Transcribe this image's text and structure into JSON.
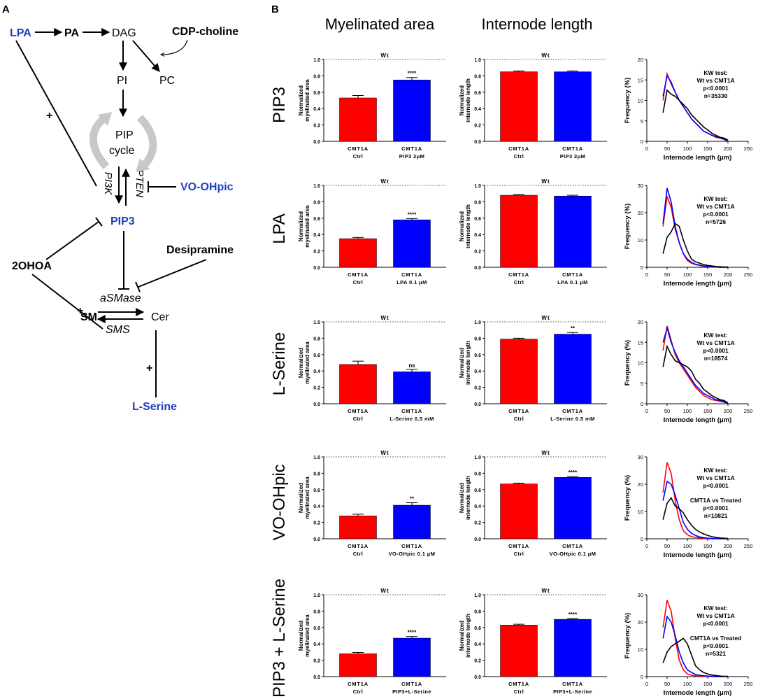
{
  "panel_a": {
    "label": "A",
    "nodes": {
      "lpa": "LPA",
      "pa": "PA",
      "dag": "DAG",
      "cdp": "CDP-choline",
      "pi": "PI",
      "pc": "PC",
      "pip_cycle_1": "PIP",
      "pip_cycle_2": "cycle",
      "pi3k": "PI3K",
      "pten": "PTEN",
      "vo": "VO-OHpic",
      "pip3": "PIP3",
      "desipramine": "Desipramine",
      "ohoa": "2OHOA",
      "asmase": "aSMase",
      "sm": "SM",
      "sms": "SMS",
      "cer": "Cer",
      "lserine": "L-Serine",
      "plus": "+"
    },
    "colors": {
      "blue": "#1f3fbf",
      "arrow_gray": "#c8c8c8"
    }
  },
  "panel_b": {
    "label": "B",
    "col_headers": [
      "Myelinated area",
      "Internode length"
    ],
    "colors": {
      "ctrl": "#ff0000",
      "treated": "#0000ff",
      "wt": "#000000"
    }
  },
  "chart_data": [
    {
      "id": "pip3_area",
      "type": "bar",
      "row_label": "PIP3",
      "ylabel": [
        "Normalized",
        "myelinated area"
      ],
      "categories": [
        [
          "CMT1A",
          "Ctrl"
        ],
        [
          "CMT1A",
          "PIP3 2μM"
        ]
      ],
      "values": [
        0.53,
        0.75
      ],
      "errors": [
        0.03,
        0.03
      ],
      "significance": [
        "",
        "****"
      ],
      "wt_label": "Wt",
      "wt_value": 1.0,
      "ylim": [
        0,
        1.0
      ],
      "yticks": [
        "0.0",
        "0.2",
        "0.4",
        "0.6",
        "0.8",
        "1.0"
      ]
    },
    {
      "id": "pip3_len",
      "type": "bar",
      "ylabel": [
        "Normalized",
        "internode length"
      ],
      "categories": [
        [
          "CMT1A",
          "Ctrl"
        ],
        [
          "CMT1A",
          "PIP3 2μM"
        ]
      ],
      "values": [
        0.85,
        0.85
      ],
      "errors": [
        0.01,
        0.01
      ],
      "significance": [
        "",
        ""
      ],
      "wt_label": "Wt",
      "wt_value": 1.0,
      "ylim": [
        0,
        1.0
      ],
      "yticks": [
        "0.0",
        "0.2",
        "0.4",
        "0.6",
        "0.8",
        "1.0"
      ]
    },
    {
      "id": "pip3_freq",
      "type": "line",
      "ylabel": "Frequency (%)",
      "xlabel": "Internode length (μm)",
      "xlim": [
        0,
        250
      ],
      "ylim": [
        0,
        20
      ],
      "xticks": [
        "0",
        "50",
        "100",
        "150",
        "200",
        "250"
      ],
      "yticks": [
        "0",
        "5",
        "10",
        "15",
        "20"
      ],
      "x": [
        40,
        50,
        60,
        70,
        80,
        90,
        100,
        110,
        120,
        130,
        140,
        150,
        160,
        170,
        180,
        190,
        200
      ],
      "series": [
        {
          "name": "CMT1A",
          "values": [
            10,
            16.5,
            14,
            12,
            10,
            8.5,
            7,
            5.5,
            4.5,
            3.5,
            2.5,
            2,
            1.5,
            1,
            0.8,
            0.5,
            0
          ]
        },
        {
          "name": "Treated",
          "values": [
            11,
            16,
            14.5,
            12,
            10,
            8.5,
            7,
            5.5,
            4.5,
            3.5,
            2.5,
            2,
            1.5,
            1.2,
            0.9,
            0.6,
            0
          ]
        },
        {
          "name": "Wt",
          "values": [
            7,
            12.5,
            11.5,
            11,
            10,
            9,
            8,
            6.5,
            5.5,
            4.5,
            3.5,
            2.8,
            2,
            1.5,
            1,
            0.8,
            0.3
          ]
        }
      ],
      "annotation": [
        "KW test:",
        "Wt vs CMT1A",
        "p<0.0001",
        "n=35330"
      ]
    },
    {
      "id": "lpa_area",
      "type": "bar",
      "row_label": "LPA",
      "ylabel": [
        "Normalized",
        "myelinated area"
      ],
      "categories": [
        [
          "CMT1A",
          "Ctrl"
        ],
        [
          "CMT1A",
          "LPA 0.1 μM"
        ]
      ],
      "values": [
        0.35,
        0.58
      ],
      "errors": [
        0.015,
        0.015
      ],
      "significance": [
        "",
        "****"
      ],
      "wt_label": "Wt",
      "wt_value": 1.0,
      "ylim": [
        0,
        1.0
      ],
      "yticks": [
        "0.0",
        "0.2",
        "0.4",
        "0.6",
        "0.8",
        "1.0"
      ]
    },
    {
      "id": "lpa_len",
      "type": "bar",
      "ylabel": [
        "Normalized",
        "internode length"
      ],
      "categories": [
        [
          "CMT1A",
          "Ctrl"
        ],
        [
          "CMT1A",
          "LPA 0.1 μM"
        ]
      ],
      "values": [
        0.88,
        0.87
      ],
      "errors": [
        0.01,
        0.01
      ],
      "significance": [
        "",
        ""
      ],
      "wt_label": "Wt",
      "wt_value": 1.0,
      "ylim": [
        0,
        1.0
      ],
      "yticks": [
        "0.0",
        "0.2",
        "0.4",
        "0.6",
        "0.8",
        "1.0"
      ]
    },
    {
      "id": "lpa_freq",
      "type": "line",
      "ylabel": "Frequency (%)",
      "xlabel": "Internode length (μm)",
      "xlim": [
        0,
        250
      ],
      "ylim": [
        0,
        30
      ],
      "xticks": [
        "0",
        "50",
        "100",
        "150",
        "200",
        "250"
      ],
      "yticks": [
        "0",
        "10",
        "20",
        "30"
      ],
      "x": [
        40,
        50,
        60,
        70,
        80,
        90,
        100,
        110,
        120,
        130,
        140,
        150,
        160,
        170,
        180,
        190,
        200
      ],
      "series": [
        {
          "name": "CMT1A",
          "values": [
            15,
            26,
            22,
            14,
            9,
            5,
            2.5,
            1.5,
            1,
            0.7,
            0.4,
            0.2,
            0.1,
            0.1,
            0,
            0,
            0
          ]
        },
        {
          "name": "Treated",
          "values": [
            16,
            29,
            24,
            15,
            9,
            5,
            3,
            1.8,
            1.1,
            0.8,
            0.5,
            0.3,
            0.2,
            0.1,
            0,
            0,
            0
          ]
        },
        {
          "name": "Wt",
          "values": [
            5,
            11,
            13,
            16,
            15,
            10,
            6,
            3,
            2,
            1.5,
            1,
            0.7,
            0.5,
            0.3,
            0.2,
            0.1,
            0.1
          ]
        }
      ],
      "annotation": [
        "KW test:",
        "Wt vs CMT1A",
        "p<0.0001",
        "n=5726"
      ]
    },
    {
      "id": "ls_area",
      "type": "bar",
      "row_label": "L-Serine",
      "ylabel": [
        "Normalized",
        "myelinated area"
      ],
      "categories": [
        [
          "CMT1A",
          "Ctrl"
        ],
        [
          "CMT1A",
          "L-Serine 0.5 mM"
        ]
      ],
      "values": [
        0.48,
        0.39
      ],
      "errors": [
        0.04,
        0.03
      ],
      "significance": [
        "",
        "ns"
      ],
      "wt_label": "Wt",
      "wt_value": 1.0,
      "ylim": [
        0,
        1.0
      ],
      "yticks": [
        "0.0",
        "0.2",
        "0.4",
        "0.6",
        "0.8",
        "1.0"
      ]
    },
    {
      "id": "ls_len",
      "type": "bar",
      "ylabel": [
        "Normalized",
        "internode length"
      ],
      "categories": [
        [
          "CMT1A",
          "Ctrl"
        ],
        [
          "CMT1A",
          "L-Serine 0.5 mM"
        ]
      ],
      "values": [
        0.79,
        0.85
      ],
      "errors": [
        0.01,
        0.02
      ],
      "significance": [
        "",
        "**"
      ],
      "wt_label": "Wt",
      "wt_value": 1.0,
      "ylim": [
        0,
        1.0
      ],
      "yticks": [
        "0.0",
        "0.2",
        "0.4",
        "0.6",
        "0.8",
        "1.0"
      ]
    },
    {
      "id": "ls_freq",
      "type": "line",
      "ylabel": "Frequency (%)",
      "xlabel": "Internode length (μm)",
      "xlim": [
        0,
        250
      ],
      "ylim": [
        0,
        20
      ],
      "xticks": [
        "0",
        "50",
        "100",
        "150",
        "200",
        "250"
      ],
      "yticks": [
        "0",
        "5",
        "10",
        "15",
        "20"
      ],
      "x": [
        40,
        50,
        60,
        70,
        80,
        90,
        100,
        110,
        120,
        130,
        140,
        150,
        160,
        170,
        180,
        190,
        200
      ],
      "series": [
        {
          "name": "CMT1A",
          "values": [
            13,
            19,
            15.5,
            12,
            10,
            8.5,
            7,
            5.5,
            4,
            3,
            2,
            1.5,
            1,
            0.8,
            0.6,
            0.4,
            0.1
          ]
        },
        {
          "name": "Treated",
          "values": [
            15,
            18.5,
            15,
            12.5,
            10.5,
            9,
            7.5,
            6,
            4.5,
            3.5,
            2.5,
            2,
            1.5,
            1,
            0.8,
            0.5,
            0.1
          ]
        },
        {
          "name": "Wt",
          "values": [
            9,
            14,
            12,
            10.5,
            10,
            9.5,
            9,
            8,
            6,
            5,
            3.5,
            2.8,
            2,
            1.5,
            1,
            0.8,
            0.2
          ]
        }
      ],
      "annotation": [
        "KW test:",
        "Wt vs CMT1A",
        "p<0.0001",
        "n=18574"
      ]
    },
    {
      "id": "vo_area",
      "type": "bar",
      "row_label": "VO-OHpic",
      "ylabel": [
        "Normalized",
        "myelinated area"
      ],
      "categories": [
        [
          "CMT1A",
          "Ctrl"
        ],
        [
          "CMT1A",
          "VO-OHpic 0.1 μM"
        ]
      ],
      "values": [
        0.28,
        0.41
      ],
      "errors": [
        0.02,
        0.03
      ],
      "significance": [
        "",
        "**"
      ],
      "wt_label": "Wt",
      "wt_value": 1.0,
      "ylim": [
        0,
        1.0
      ],
      "yticks": [
        "0.0",
        "0.2",
        "0.4",
        "0.6",
        "0.8",
        "1.0"
      ]
    },
    {
      "id": "vo_len",
      "type": "bar",
      "ylabel": [
        "Normalized",
        "internode length"
      ],
      "categories": [
        [
          "CMT1A",
          "Ctrl"
        ],
        [
          "CMT1A",
          "VO-OHpic 0.1 μM"
        ]
      ],
      "values": [
        0.67,
        0.75
      ],
      "errors": [
        0.01,
        0.01
      ],
      "significance": [
        "",
        "****"
      ],
      "wt_label": "Wt",
      "wt_value": 1.0,
      "ylim": [
        0,
        1.0
      ],
      "yticks": [
        "0.0",
        "0.2",
        "0.4",
        "0.6",
        "0.8",
        "1.0"
      ]
    },
    {
      "id": "vo_freq",
      "type": "line",
      "ylabel": "Frequency (%)",
      "xlabel": "Internode length (μm)",
      "xlim": [
        0,
        250
      ],
      "ylim": [
        0,
        30
      ],
      "xticks": [
        "0",
        "50",
        "100",
        "150",
        "200",
        "250"
      ],
      "yticks": [
        "0",
        "10",
        "20",
        "30"
      ],
      "x": [
        40,
        50,
        60,
        70,
        80,
        90,
        100,
        110,
        120,
        130,
        140,
        150,
        160,
        170,
        180,
        190,
        200
      ],
      "series": [
        {
          "name": "CMT1A",
          "values": [
            17,
            28,
            24,
            14,
            7,
            3,
            1.5,
            0.8,
            0.5,
            0.3,
            0.2,
            0.1,
            0,
            0,
            0,
            0,
            0
          ]
        },
        {
          "name": "Treated",
          "values": [
            14,
            21,
            20,
            16,
            11,
            6,
            3.5,
            2,
            1.2,
            0.7,
            0.4,
            0.2,
            0.1,
            0.1,
            0,
            0,
            0
          ]
        },
        {
          "name": "Wt",
          "values": [
            7,
            13,
            15,
            12,
            11,
            9.5,
            7,
            5,
            3.5,
            2.5,
            1.8,
            1.2,
            0.8,
            0.5,
            0.3,
            0.2,
            0.1
          ]
        }
      ],
      "annotation": [
        "KW test:",
        "Wt vs CMT1A",
        "p<0.0001",
        "CMT1A vs Treated",
        "p<0.0001",
        "n=10821"
      ]
    },
    {
      "id": "combo_area",
      "type": "bar",
      "row_label": "PIP3 + L-Serine",
      "ylabel": [
        "Normalized",
        "myelinated area"
      ],
      "categories": [
        [
          "CMT1A",
          "Ctrl"
        ],
        [
          "CMT1A",
          "PIP3+L-Serine"
        ]
      ],
      "values": [
        0.28,
        0.47
      ],
      "errors": [
        0.015,
        0.02
      ],
      "significance": [
        "",
        "****"
      ],
      "wt_label": "Wt",
      "wt_value": 1.0,
      "ylim": [
        0,
        1.0
      ],
      "yticks": [
        "0.0",
        "0.2",
        "0.4",
        "0.6",
        "0.8",
        "1.0"
      ]
    },
    {
      "id": "combo_len",
      "type": "bar",
      "ylabel": [
        "Normalized",
        "internode length"
      ],
      "categories": [
        [
          "CMT1A",
          "Ctrl"
        ],
        [
          "CMT1A",
          "PIP3+L-Serine"
        ]
      ],
      "values": [
        0.63,
        0.7
      ],
      "errors": [
        0.01,
        0.01
      ],
      "significance": [
        "",
        "****"
      ],
      "wt_label": "Wt",
      "wt_value": 1.0,
      "ylim": [
        0,
        1.0
      ],
      "yticks": [
        "0.0",
        "0.2",
        "0.4",
        "0.6",
        "0.8",
        "1.0"
      ]
    },
    {
      "id": "combo_freq",
      "type": "line",
      "ylabel": "Frequency (%)",
      "xlabel": "Internode length (μm)",
      "xlim": [
        0,
        250
      ],
      "ylim": [
        0,
        30
      ],
      "xticks": [
        "0",
        "50",
        "100",
        "150",
        "200",
        "250"
      ],
      "yticks": [
        "0",
        "10",
        "20",
        "30"
      ],
      "x": [
        40,
        50,
        60,
        70,
        80,
        90,
        100,
        110,
        120,
        130,
        140,
        150,
        160,
        170,
        180,
        190,
        200
      ],
      "series": [
        {
          "name": "CMT1A",
          "values": [
            18,
            28,
            24,
            14,
            6,
            2.5,
            1,
            0.5,
            0.3,
            0.2,
            0.1,
            0,
            0,
            0,
            0,
            0,
            0
          ]
        },
        {
          "name": "Treated",
          "values": [
            14,
            22,
            20,
            15,
            9,
            5,
            2.5,
            1.5,
            0.8,
            0.5,
            0.3,
            0.2,
            0.1,
            0,
            0,
            0,
            0
          ]
        },
        {
          "name": "Wt",
          "values": [
            5,
            9,
            11,
            12,
            13,
            14,
            12,
            8,
            4,
            2.5,
            1.5,
            1,
            0.6,
            0.4,
            0.2,
            0.1,
            0.1
          ]
        }
      ],
      "annotation": [
        "KW test:",
        "Wt vs CMT1A",
        "p<0.0001",
        "CMT1A vs Treated",
        "p<0.0001",
        "n=5321"
      ]
    }
  ]
}
